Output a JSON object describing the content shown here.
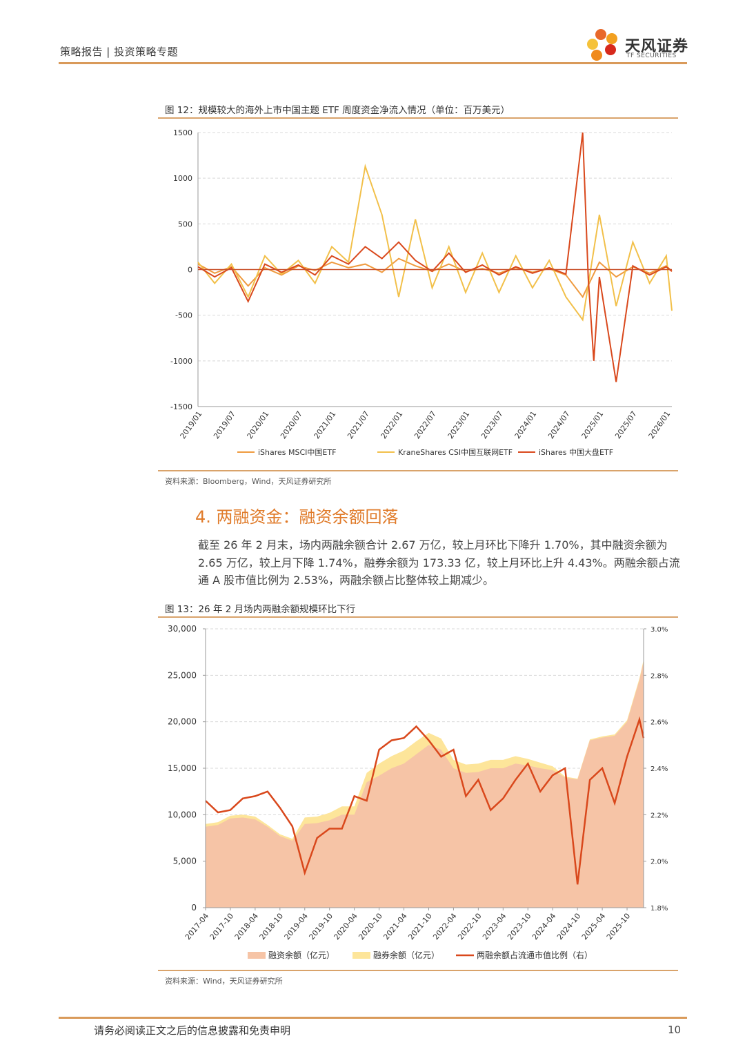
{
  "header": {
    "left_text": "策略报告 | 投资策略专题",
    "logo_text": "天风证券",
    "logo_sub": "TF SECURITIES"
  },
  "figure12": {
    "title": "图 12：规模较大的海外上市中国主题 ETF 周度资金净流入情况（单位：百万美元）",
    "source": "资料来源：Bloomberg，Wind，天风证券研究所"
  },
  "section": {
    "title": "4. 两融资金：融资余额回落",
    "paragraph": "截至 26 年 2 月末，场内两融余额合计 2.67 万亿，较上月环比下降升 1.70%，其中融资余额为 2.65 万亿，较上月下降 1.74%，融券余额为 173.33 亿，较上月环比上升 4.43%。两融余额占流通 A 股市值比例为 2.53%，两融余额占比整体较上期减少。"
  },
  "figure13": {
    "title": "图 13：26 年 2 月场内两融余额规模环比下行",
    "source": "资料来源：Wind，天风证券研究所"
  },
  "footer": {
    "disclaimer": "请务必阅读正文之后的信息披露和免责申明",
    "page_number": "10"
  },
  "chart_data": [
    {
      "type": "line",
      "ylim": [
        -1500,
        1500
      ],
      "yticks": [
        "1500",
        "1000",
        "500",
        "0",
        "-500",
        "-1000",
        "-1500"
      ],
      "x_ticks": [
        "2019/01",
        "2019/07",
        "2020/01",
        "2020/07",
        "2021/01",
        "2021/07",
        "2022/01",
        "2022/07",
        "2023/01",
        "2023/07",
        "2024/01",
        "2024/07",
        "2025/01",
        "2025/07",
        "2026/01"
      ],
      "series": [
        {
          "name": "iShares MSCI中国ETF",
          "color": "#ef9a3e",
          "x": [
            "2019/01",
            "2019/04",
            "2019/07",
            "2019/10",
            "2020/01",
            "2020/04",
            "2020/07",
            "2020/10",
            "2021/01",
            "2021/04",
            "2021/07",
            "2021/10",
            "2022/01",
            "2022/04",
            "2022/07",
            "2022/10",
            "2023/01",
            "2023/04",
            "2023/07",
            "2023/10",
            "2024/01",
            "2024/04",
            "2024/07",
            "2024/10",
            "2025/01",
            "2025/04",
            "2025/07",
            "2025/10",
            "2026/01",
            "2026/02"
          ],
          "values": [
            60,
            -40,
            30,
            -180,
            20,
            -60,
            40,
            -10,
            80,
            20,
            60,
            -30,
            120,
            40,
            -20,
            60,
            -20,
            10,
            -40,
            20,
            -30,
            10,
            -60,
            -300,
            80,
            -80,
            30,
            -40,
            40,
            -20
          ]
        },
        {
          "name": "KraneShares CSI中国互联网ETF",
          "color": "#f2c04a",
          "x": [
            "2019/01",
            "2019/04",
            "2019/07",
            "2019/10",
            "2020/01",
            "2020/04",
            "2020/07",
            "2020/10",
            "2021/01",
            "2021/04",
            "2021/07",
            "2021/10",
            "2022/01",
            "2022/04",
            "2022/07",
            "2022/10",
            "2023/01",
            "2023/04",
            "2023/07",
            "2023/10",
            "2024/01",
            "2024/04",
            "2024/07",
            "2024/10",
            "2025/01",
            "2025/04",
            "2025/07",
            "2025/10",
            "2026/01",
            "2026/02"
          ],
          "values": [
            80,
            -150,
            60,
            -300,
            150,
            -50,
            100,
            -150,
            250,
            80,
            1130,
            600,
            -300,
            550,
            -200,
            250,
            -250,
            180,
            -250,
            150,
            -200,
            100,
            -300,
            -550,
            600,
            -400,
            300,
            -150,
            150,
            -450
          ]
        },
        {
          "name": "iShares 中国大盘ETF",
          "color": "#d9481c",
          "x": [
            "2019/01",
            "2019/04",
            "2019/07",
            "2019/10",
            "2020/01",
            "2020/04",
            "2020/07",
            "2020/10",
            "2021/01",
            "2021/04",
            "2021/07",
            "2021/10",
            "2022/01",
            "2022/04",
            "2022/07",
            "2022/10",
            "2023/01",
            "2023/04",
            "2023/07",
            "2023/10",
            "2024/01",
            "2024/04",
            "2024/07",
            "2024/10",
            "2024/11",
            "2024/12",
            "2025/01",
            "2025/04",
            "2025/07",
            "2025/10",
            "2026/01",
            "2026/02"
          ],
          "values": [
            30,
            -80,
            20,
            -350,
            60,
            -30,
            50,
            -60,
            150,
            60,
            250,
            120,
            300,
            100,
            -20,
            180,
            -30,
            50,
            -60,
            30,
            -40,
            20,
            -50,
            1500,
            -100,
            -1000,
            -80,
            -1230,
            40,
            -60,
            30,
            -20
          ]
        }
      ]
    },
    {
      "type": "area",
      "ylim_left": [
        0,
        30000
      ],
      "ylim_right": [
        1.8,
        3.0
      ],
      "yticks_left": [
        "30,000",
        "25,000",
        "20,000",
        "15,000",
        "10,000",
        "5,000",
        "0"
      ],
      "yticks_right": [
        "3.0%",
        "2.8%",
        "2.6%",
        "2.4%",
        "2.2%",
        "2.0%",
        "1.8%"
      ],
      "x_ticks": [
        "2017-04",
        "2017-10",
        "2018-04",
        "2018-10",
        "2019-04",
        "2019-10",
        "2020-04",
        "2020-10",
        "2021-04",
        "2021-10",
        "2022-04",
        "2022-10",
        "2023-04",
        "2023-10",
        "2024-04",
        "2024-10",
        "2025-04",
        "2025-10"
      ],
      "x": [
        "2017-04",
        "2017-07",
        "2017-10",
        "2018-01",
        "2018-04",
        "2018-07",
        "2018-10",
        "2019-01",
        "2019-04",
        "2019-07",
        "2019-10",
        "2020-01",
        "2020-04",
        "2020-07",
        "2020-10",
        "2021-01",
        "2021-04",
        "2021-07",
        "2021-10",
        "2022-01",
        "2022-04",
        "2022-07",
        "2022-10",
        "2023-01",
        "2023-04",
        "2023-07",
        "2023-10",
        "2024-01",
        "2024-04",
        "2024-07",
        "2024-10",
        "2025-01",
        "2025-04",
        "2025-07",
        "2025-10",
        "2026-01",
        "2026-02"
      ],
      "series": [
        {
          "name": "融资余额（亿元）",
          "color": "#f6c4a6",
          "values": [
            8700,
            8900,
            9600,
            9700,
            9500,
            8700,
            7700,
            7200,
            9000,
            9100,
            9400,
            10000,
            10000,
            13500,
            14200,
            15000,
            15500,
            16500,
            17500,
            17000,
            15000,
            14500,
            14600,
            15000,
            15000,
            15500,
            15300,
            15000,
            14800,
            14000,
            13800,
            18000,
            18300,
            18500,
            20000,
            24500,
            26500
          ]
        },
        {
          "name": "融券余额（亿元）",
          "color": "#fde59a",
          "values": [
            300,
            300,
            300,
            300,
            300,
            200,
            200,
            200,
            700,
            700,
            800,
            900,
            900,
            1000,
            1300,
            1300,
            1400,
            1400,
            1300,
            1200,
            900,
            900,
            900,
            900,
            900,
            800,
            700,
            600,
            400,
            100,
            80,
            100,
            120,
            140,
            160,
            180,
            173
          ]
        },
        {
          "name": "两融余额占流通市值比例（右）",
          "color": "#d9481c",
          "values": [
            2.26,
            2.21,
            2.22,
            2.27,
            2.28,
            2.3,
            2.23,
            2.15,
            1.95,
            2.1,
            2.14,
            2.14,
            2.28,
            2.26,
            2.48,
            2.52,
            2.53,
            2.58,
            2.52,
            2.45,
            2.48,
            2.28,
            2.35,
            2.22,
            2.27,
            2.35,
            2.42,
            2.3,
            2.37,
            2.4,
            1.9,
            2.35,
            2.4,
            2.25,
            2.45,
            2.61,
            2.53
          ]
        }
      ]
    }
  ]
}
